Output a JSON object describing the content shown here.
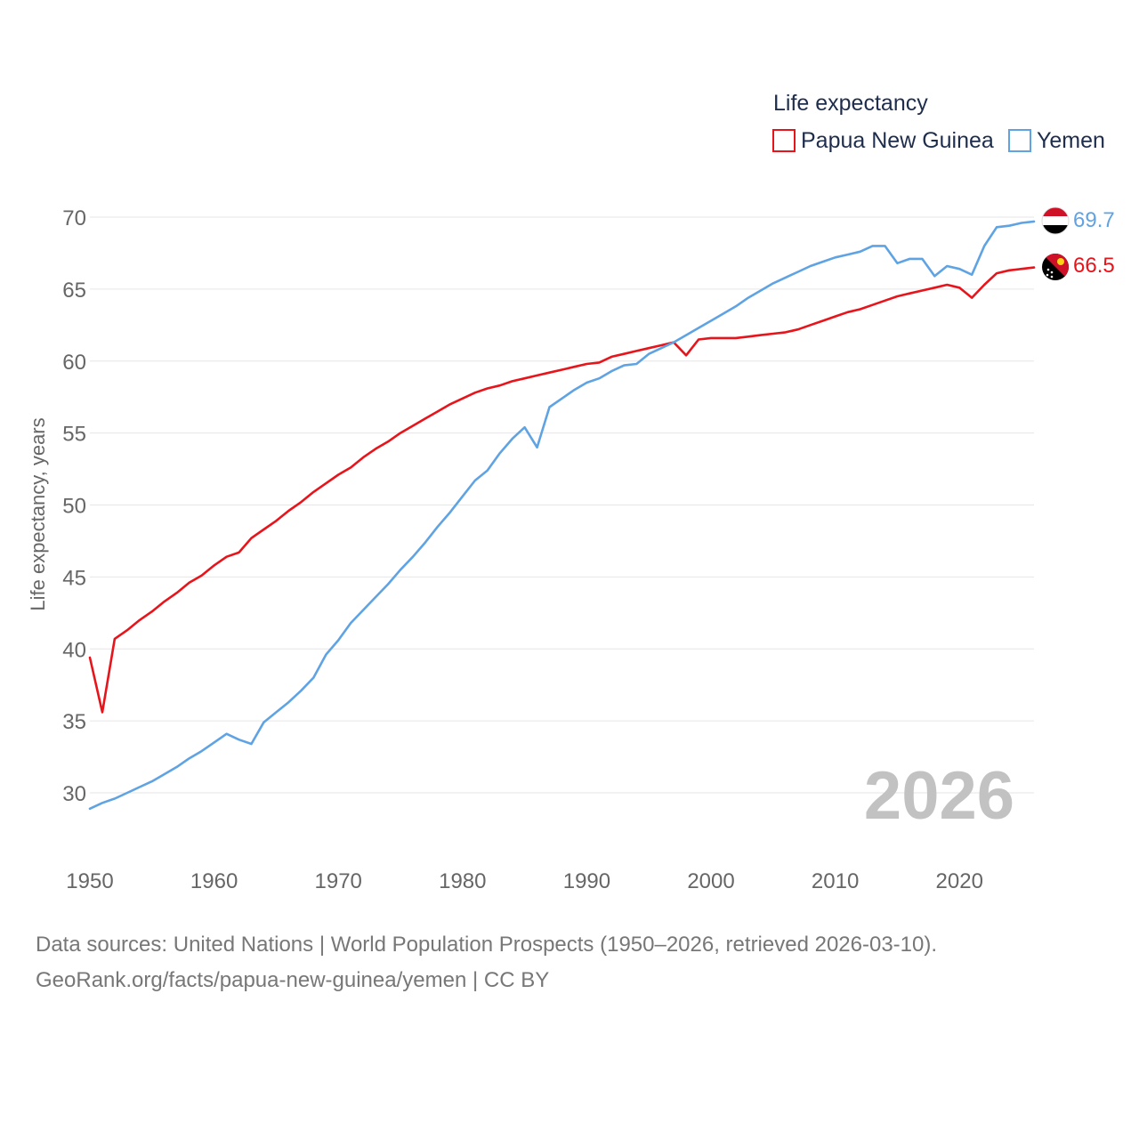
{
  "chart_data": {
    "type": "line",
    "legend_title": "Life expectancy",
    "ylabel": "Life expectancy, years",
    "xlabel": "",
    "xlim": [
      1950,
      2026
    ],
    "ylim": [
      27,
      72
    ],
    "x_ticks": [
      1950,
      1960,
      1970,
      1980,
      1990,
      2000,
      2010,
      2020
    ],
    "y_ticks": [
      30,
      35,
      40,
      45,
      50,
      55,
      60,
      65,
      70
    ],
    "grid": true,
    "legend_position": "top-right",
    "year_watermark": "2026",
    "x": [
      1950,
      1951,
      1952,
      1953,
      1954,
      1955,
      1956,
      1957,
      1958,
      1959,
      1960,
      1961,
      1962,
      1963,
      1964,
      1965,
      1966,
      1967,
      1968,
      1969,
      1970,
      1971,
      1972,
      1973,
      1974,
      1975,
      1976,
      1977,
      1978,
      1979,
      1980,
      1981,
      1982,
      1983,
      1984,
      1985,
      1986,
      1987,
      1988,
      1989,
      1990,
      1991,
      1992,
      1993,
      1994,
      1995,
      1996,
      1997,
      1998,
      1999,
      2000,
      2001,
      2002,
      2003,
      2004,
      2005,
      2006,
      2007,
      2008,
      2009,
      2010,
      2011,
      2012,
      2013,
      2014,
      2015,
      2016,
      2017,
      2018,
      2019,
      2020,
      2021,
      2022,
      2023,
      2024,
      2025,
      2026
    ],
    "series": [
      {
        "name": "Papua New Guinea",
        "color": "#e8141b",
        "end_label": "66.5",
        "flag_icon": "papua-new-guinea-flag-icon",
        "values": [
          39.4,
          35.6,
          40.7,
          41.3,
          42.0,
          42.6,
          43.3,
          43.9,
          44.6,
          45.1,
          45.8,
          46.4,
          46.7,
          47.7,
          48.3,
          48.9,
          49.6,
          50.2,
          50.9,
          51.5,
          52.1,
          52.6,
          53.3,
          53.9,
          54.4,
          55.0,
          55.5,
          56.0,
          56.5,
          57.0,
          57.4,
          57.8,
          58.1,
          58.3,
          58.6,
          58.8,
          59.0,
          59.2,
          59.4,
          59.6,
          59.8,
          59.9,
          60.3,
          60.5,
          60.7,
          60.9,
          61.1,
          61.3,
          60.4,
          61.5,
          61.6,
          61.6,
          61.6,
          61.7,
          61.8,
          61.9,
          62.0,
          62.2,
          62.5,
          62.8,
          63.1,
          63.4,
          63.6,
          63.9,
          64.2,
          64.5,
          64.7,
          64.9,
          65.1,
          65.3,
          65.1,
          64.4,
          65.3,
          66.1,
          66.3,
          66.4,
          66.5
        ]
      },
      {
        "name": "Yemen",
        "color": "#5fa3e3",
        "end_label": "69.7",
        "flag_icon": "yemen-flag-icon",
        "values": [
          28.9,
          29.3,
          29.6,
          30.0,
          30.4,
          30.8,
          31.3,
          31.8,
          32.4,
          32.9,
          33.5,
          34.1,
          33.7,
          33.4,
          34.9,
          35.6,
          36.3,
          37.1,
          38.0,
          39.6,
          40.6,
          41.8,
          42.7,
          43.6,
          44.5,
          45.5,
          46.4,
          47.4,
          48.5,
          49.5,
          50.6,
          51.7,
          52.4,
          53.6,
          54.6,
          55.4,
          54.0,
          56.8,
          57.4,
          58.0,
          58.5,
          58.8,
          59.3,
          59.7,
          59.8,
          60.5,
          60.9,
          61.3,
          61.8,
          62.3,
          62.8,
          63.3,
          63.8,
          64.4,
          64.9,
          65.4,
          65.8,
          66.2,
          66.6,
          66.9,
          67.2,
          67.4,
          67.6,
          68.0,
          68.0,
          66.8,
          67.1,
          67.1,
          65.9,
          66.6,
          66.4,
          66.0,
          68.0,
          69.3,
          69.4,
          69.6,
          69.7
        ]
      }
    ]
  },
  "footer": {
    "source_line": "Data sources: United Nations | World Population Prospects (1950–2026, retrieved 2026-03-10).",
    "url_line": "GeoRank.org/facts/papua-new-guinea/yemen | CC BY"
  }
}
